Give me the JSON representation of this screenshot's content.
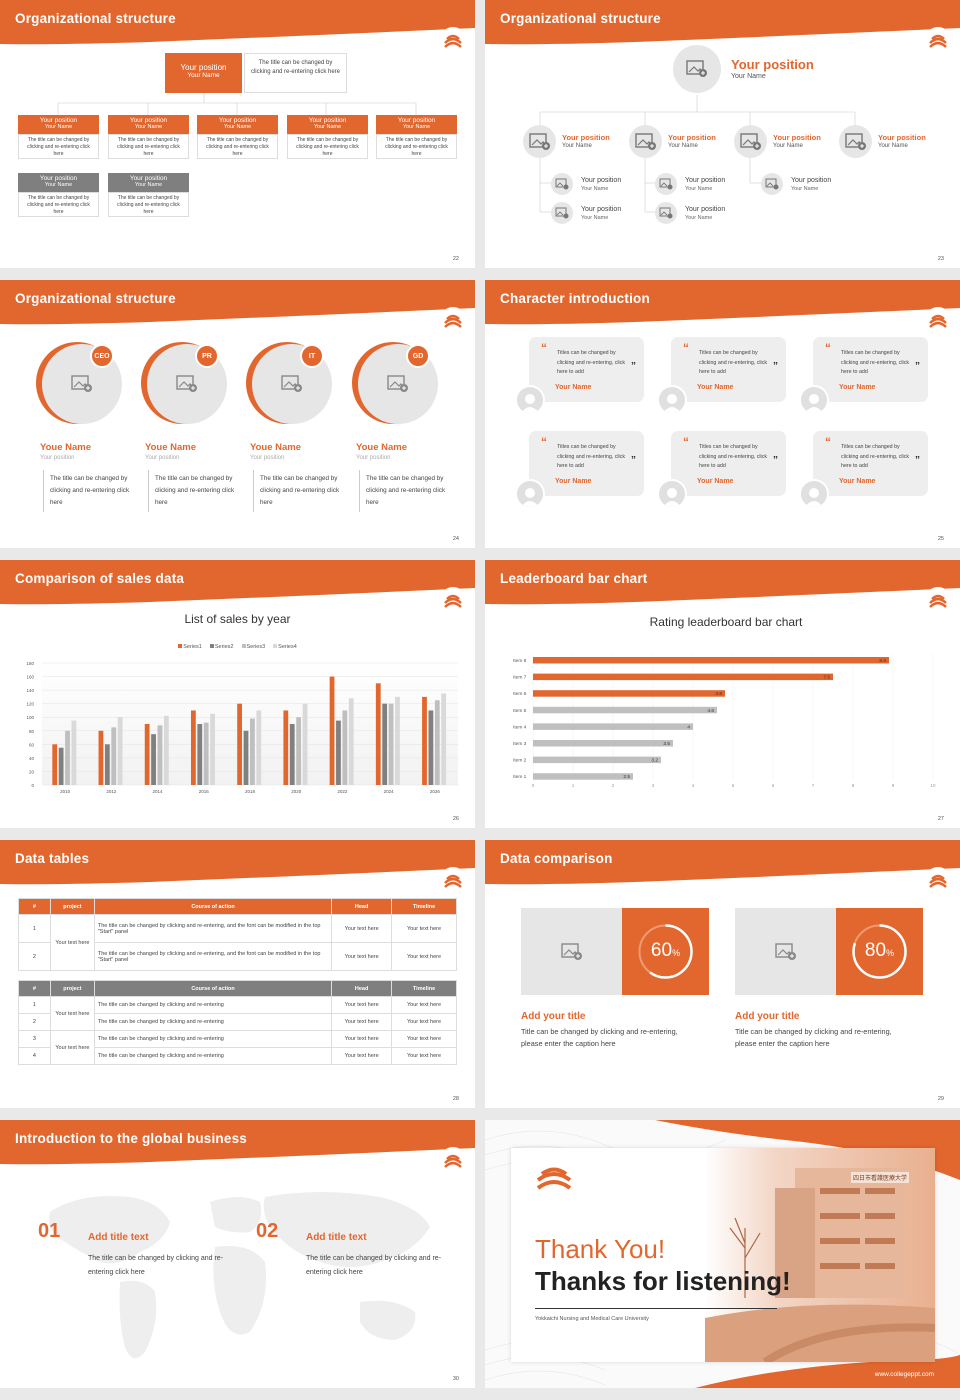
{
  "slides": [
    {
      "title": "Organizational structure",
      "page": "22",
      "top_box": {
        "position": "Your position",
        "name": "Your Name",
        "caption": "The title can be changed by clicking and re-entering click here"
      },
      "units": [
        {
          "position": "Your position",
          "name": "Your Name",
          "caption": "The title can be changed by clicking and re-entering click here"
        },
        {
          "position": "Your position",
          "name": "Your Name",
          "caption": "The title can be changed by clicking and re-entering click here"
        },
        {
          "position": "Your position",
          "name": "Your Name",
          "caption": "The title can be changed by clicking and re-entering click here"
        },
        {
          "position": "Your position",
          "name": "Your Name",
          "caption": "The title can be changed by clicking and re-entering click here"
        },
        {
          "position": "Your position",
          "name": "Your Name",
          "caption": "The title can be changed by clicking and re-entering click here"
        }
      ],
      "sub_units": [
        {
          "position": "Your position",
          "name": "Your Name",
          "caption": "The title can be changed by clicking and re-entering click here"
        },
        {
          "position": "Your position",
          "name": "Your Name",
          "caption": "The title can be changed by clicking and re-entering click here"
        }
      ]
    },
    {
      "title": "Organizational structure",
      "page": "23",
      "head": {
        "position": "Your position",
        "name": "Your Name"
      },
      "members": [
        {
          "position": "Your position",
          "name": "Your Name"
        },
        {
          "position": "Your position",
          "name": "Your Name"
        },
        {
          "position": "Your position",
          "name": "Your Name"
        },
        {
          "position": "Your position",
          "name": "Your Name"
        }
      ],
      "sub_members": [
        {
          "position": "Your position",
          "name": "Your Name"
        },
        {
          "position": "Your position",
          "name": "Your Name"
        },
        {
          "position": "Your position",
          "name": "Your Name"
        },
        {
          "position": "Your position",
          "name": "Your Name"
        },
        {
          "position": "Your position",
          "name": "Your Name"
        }
      ]
    },
    {
      "title": "Organizational structure",
      "page": "24",
      "people": [
        {
          "badge": "CEO",
          "name": "Youe Name",
          "position": "Your position",
          "desc": "The title can be changed by clicking and re-entering click here"
        },
        {
          "badge": "PR",
          "name": "Youe Name",
          "position": "Your position",
          "desc": "The title can be changed by clicking and re-entering click here"
        },
        {
          "badge": "IT",
          "name": "Youe Name",
          "position": "Your position",
          "desc": "The title can be changed by clicking and re-entering click here"
        },
        {
          "badge": "GD",
          "name": "Youe Name",
          "position": "Your position",
          "desc": "The title can be changed by clicking and re-entering click here"
        }
      ]
    },
    {
      "title": "Character introduction",
      "page": "25",
      "quotes": [
        {
          "text": "Titles can be changed by clicking and re-entering, click here to add",
          "name": "Your Name"
        },
        {
          "text": "Titles can be changed by clicking and re-entering, click here to add",
          "name": "Your Name"
        },
        {
          "text": "Titles can be changed by clicking and re-entering, click here to add",
          "name": "Your Name"
        },
        {
          "text": "Titles can be changed by clicking and re-entering, click here to add",
          "name": "Your Name"
        },
        {
          "text": "Titles can be changed by clicking and re-entering, click here to add",
          "name": "Your Name"
        },
        {
          "text": "Titles can be changed by clicking and re-entering, click here to add",
          "name": "Your Name"
        }
      ]
    },
    {
      "title": "Comparison of sales data",
      "page": "26",
      "chart_title": "List of sales by year"
    },
    {
      "title": "Leaderboard bar chart",
      "page": "27",
      "chart_title": "Rating leaderboard bar chart"
    },
    {
      "title": "Data tables",
      "page": "28",
      "table1": {
        "headers": [
          "#",
          "project",
          "Course of action",
          "Head",
          "Timeline"
        ],
        "project": "Your text here",
        "rows": [
          {
            "num": "1",
            "action": "The title can be changed by clicking and re-entering, and the font can be modified in the top \"Start\" panel",
            "head": "Your text here",
            "timeline": "Your text here"
          },
          {
            "num": "2",
            "action": "The title can be changed by clicking and re-entering, and the font can be modified in the top \"Start\" panel",
            "head": "Your text here",
            "timeline": "Your text here"
          }
        ]
      },
      "table2": {
        "headers": [
          "#",
          "project",
          "Course of action",
          "Head",
          "Timeline"
        ],
        "projects": [
          "Your text here",
          "Your text here"
        ],
        "rows": [
          {
            "num": "1",
            "action": "The title can be changed by clicking and re-entering",
            "head": "Your text here",
            "timeline": "Your text here"
          },
          {
            "num": "2",
            "action": "The title can be changed by clicking and re-entering",
            "head": "Your text here",
            "timeline": "Your text here"
          },
          {
            "num": "3",
            "action": "The title can be changed by clicking and re-entering",
            "head": "Your text here",
            "timeline": "Your text here"
          },
          {
            "num": "4",
            "action": "The title can be changed by clicking and re-entering",
            "head": "Your text here",
            "timeline": "Your text here"
          }
        ]
      }
    },
    {
      "title": "Data comparison",
      "page": "29",
      "items": [
        {
          "percent": "60",
          "unit": "%",
          "fraction": 0.6,
          "heading": "Add your title",
          "caption": "Title can be changed by clicking and re-entering, please enter the caption here"
        },
        {
          "percent": "80",
          "unit": "%",
          "fraction": 0.8,
          "heading": "Add your title",
          "caption": "Title can be changed by clicking and re-entering, please enter the caption here"
        }
      ]
    },
    {
      "title": "Introduction to the global business",
      "page": "30",
      "items": [
        {
          "num": "01",
          "heading": "Add title text",
          "text": "The title can be changed by clicking and re-entering click here"
        },
        {
          "num": "02",
          "heading": "Add title text",
          "text": "The title can be changed by clicking and re-entering click here"
        }
      ]
    },
    {
      "thanks": "Thank You!",
      "thanks_sub": "Thanks for listening!",
      "university": "Yokkaichi Nursing and Medical Care University",
      "website": "www.collegeppt.com",
      "sign": "四日市看護医療大学"
    }
  ],
  "chart_data": [
    {
      "type": "bar",
      "title": "List of sales by year",
      "categories": [
        "2010",
        "2012",
        "2014",
        "2016",
        "2018",
        "2020",
        "2022",
        "2024",
        "2026"
      ],
      "series": [
        {
          "name": "Series1",
          "values": [
            60,
            80,
            90,
            110,
            120,
            110,
            160,
            150,
            130
          ]
        },
        {
          "name": "Series2",
          "values": [
            55,
            60,
            75,
            90,
            80,
            90,
            95,
            120,
            110
          ]
        },
        {
          "name": "Series3",
          "values": [
            80,
            85,
            88,
            92,
            98,
            100,
            110,
            120,
            125
          ]
        },
        {
          "name": "Series4",
          "values": [
            95,
            100,
            102,
            105,
            110,
            120,
            128,
            130,
            135
          ]
        }
      ],
      "yticks": [
        "0",
        "20",
        "40",
        "60",
        "80",
        "100",
        "120",
        "140",
        "160",
        "180"
      ],
      "ylim": [
        0,
        180
      ],
      "grid": true,
      "legend": "top",
      "colors": [
        "#e2672f",
        "#808080",
        "#bfbfbf",
        "#d9d9d9"
      ]
    },
    {
      "type": "bar",
      "orientation": "horizontal",
      "title": "Rating leaderboard bar chart",
      "categories": [
        "Item 8",
        "Item 7",
        "Item 6",
        "Item 5",
        "Item 4",
        "Item 3",
        "Item 2",
        "Item 1"
      ],
      "values": [
        8.9,
        7.5,
        4.8,
        4.6,
        4,
        3.5,
        3.2,
        2.5
      ],
      "value_labels": [
        "8.9",
        "7.5",
        "4.8",
        "4.6",
        "4",
        "3.5",
        "3.2",
        "2.5"
      ],
      "highlight": [
        true,
        true,
        true,
        false,
        false,
        false,
        false,
        false
      ],
      "xticks": [
        "0",
        "1",
        "2",
        "3",
        "4",
        "5",
        "6",
        "7",
        "8",
        "9",
        "10"
      ],
      "xlim": [
        0,
        10
      ],
      "colors": {
        "highlight": "#e2672f",
        "normal": "#bfbfbf"
      }
    }
  ],
  "colors": {
    "accent": "#e2672f",
    "gray": "#7f7f7f",
    "light": "#e6e6e6"
  }
}
